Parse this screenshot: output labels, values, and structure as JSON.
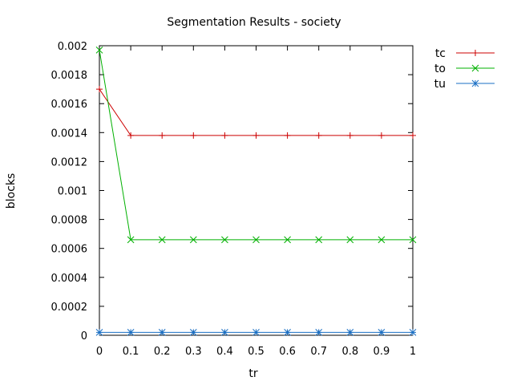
{
  "chart_data": {
    "type": "line",
    "title": "Segmentation Results - society",
    "xlabel": "tr",
    "ylabel": "blocks",
    "xlim": [
      0,
      1
    ],
    "ylim": [
      0,
      0.002
    ],
    "x": [
      0,
      0.1,
      0.2,
      0.3,
      0.4,
      0.5,
      0.6,
      0.7,
      0.8,
      0.9,
      1
    ],
    "x_ticks": [
      "0",
      "0.1",
      "0.2",
      "0.3",
      "0.4",
      "0.5",
      "0.6",
      "0.7",
      "0.8",
      "0.9",
      "1"
    ],
    "y_ticks": [
      {
        "value": 0,
        "label": "0"
      },
      {
        "value": 0.0002,
        "label": "0.0002"
      },
      {
        "value": 0.0004,
        "label": "0.0004"
      },
      {
        "value": 0.0006,
        "label": "0.0006"
      },
      {
        "value": 0.0008,
        "label": "0.0008"
      },
      {
        "value": 0.001,
        "label": "0.001"
      },
      {
        "value": 0.0012,
        "label": "0.0012"
      },
      {
        "value": 0.0014,
        "label": "0.0014"
      },
      {
        "value": 0.0016,
        "label": "0.0016"
      },
      {
        "value": 0.0018,
        "label": "0.0018"
      },
      {
        "value": 0.002,
        "label": "0.002"
      }
    ],
    "grid": false,
    "legend_position": "outside-top-right",
    "series": [
      {
        "name": "tc",
        "color": "#cc0000",
        "marker": "plus",
        "values": [
          0.0017,
          0.00138,
          0.00138,
          0.00138,
          0.00138,
          0.00138,
          0.00138,
          0.00138,
          0.00138,
          0.00138,
          0.00138
        ]
      },
      {
        "name": "to",
        "color": "#00b000",
        "marker": "cross",
        "values": [
          0.00197,
          0.00066,
          0.00066,
          0.00066,
          0.00066,
          0.00066,
          0.00066,
          0.00066,
          0.00066,
          0.00066,
          0.00066
        ]
      },
      {
        "name": "tu",
        "color": "#1a6fc4",
        "marker": "star",
        "values": [
          2e-05,
          2e-05,
          2e-05,
          2e-05,
          2e-05,
          2e-05,
          2e-05,
          2e-05,
          2e-05,
          2e-05,
          2e-05
        ]
      }
    ]
  }
}
